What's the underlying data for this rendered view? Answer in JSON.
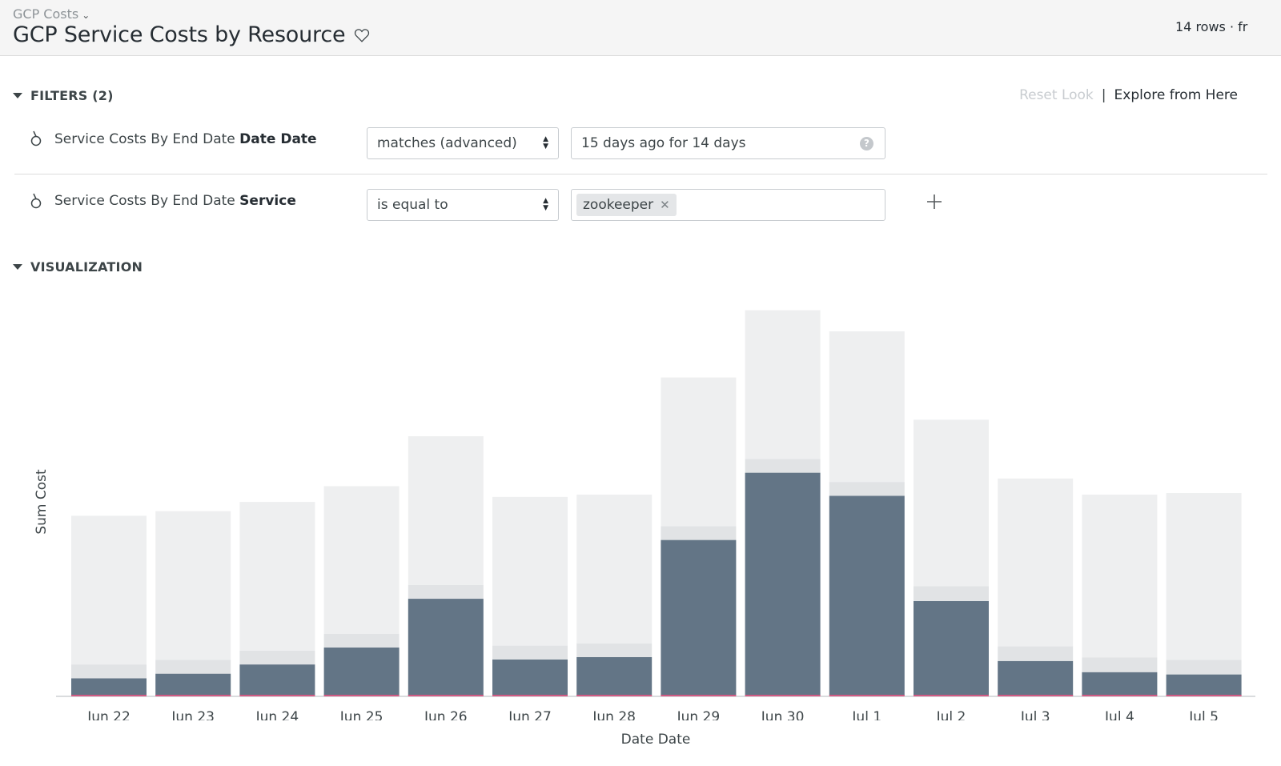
{
  "header": {
    "breadcrumb": "GCP Costs",
    "title": "GCP Service Costs by Resource",
    "row_info": "14 rows · fr"
  },
  "filters": {
    "section_label": "FILTERS (2)",
    "reset_label": "Reset Look",
    "separator": "|",
    "explore_label": "Explore from Here",
    "rows": [
      {
        "label_prefix": "Service Costs By End Date ",
        "label_field": "Date Date",
        "operator": "matches (advanced)",
        "value": "15 days ago for 14 days"
      },
      {
        "label_prefix": "Service Costs By End Date ",
        "label_field": "Service",
        "operator": "is equal to",
        "token": "zookeeper"
      }
    ]
  },
  "visualization": {
    "section_label": "VISUALIZATION"
  },
  "chart_data": {
    "type": "bar",
    "stacked": true,
    "xlabel": "Date Date",
    "ylabel": "Sum Cost",
    "y_tick_labels_shown": false,
    "categories": [
      "Jun 22",
      "Jun 23",
      "Jun 24",
      "Jun 25",
      "Jun 26",
      "Jun 27",
      "Jun 28",
      "Jun 29",
      "Jun 30",
      "Jul 1",
      "Jul 2",
      "Jul 3",
      "Jul 4",
      "Jul 5"
    ],
    "ylim": [
      0,
      100
    ],
    "series": [
      {
        "color": "#637586",
        "values": [
          4.5,
          5.7,
          8.1,
          12.5,
          25.2,
          9.4,
          10.0,
          40.5,
          58.0,
          52.0,
          24.6,
          9.0,
          6.1,
          5.5
        ]
      },
      {
        "color": "#e1e3e5",
        "values": [
          3.6,
          3.6,
          3.6,
          3.6,
          3.6,
          3.6,
          3.6,
          3.6,
          3.6,
          3.6,
          3.9,
          3.8,
          3.8,
          3.8
        ]
      },
      {
        "color": "#eeeff0",
        "values": [
          38.7,
          38.7,
          38.7,
          38.4,
          38.7,
          38.7,
          38.7,
          38.7,
          38.7,
          39.2,
          43.3,
          43.7,
          42.4,
          43.4
        ]
      }
    ]
  },
  "colors": {
    "baseline": "#d05a83",
    "axis": "#b4b8bc"
  }
}
